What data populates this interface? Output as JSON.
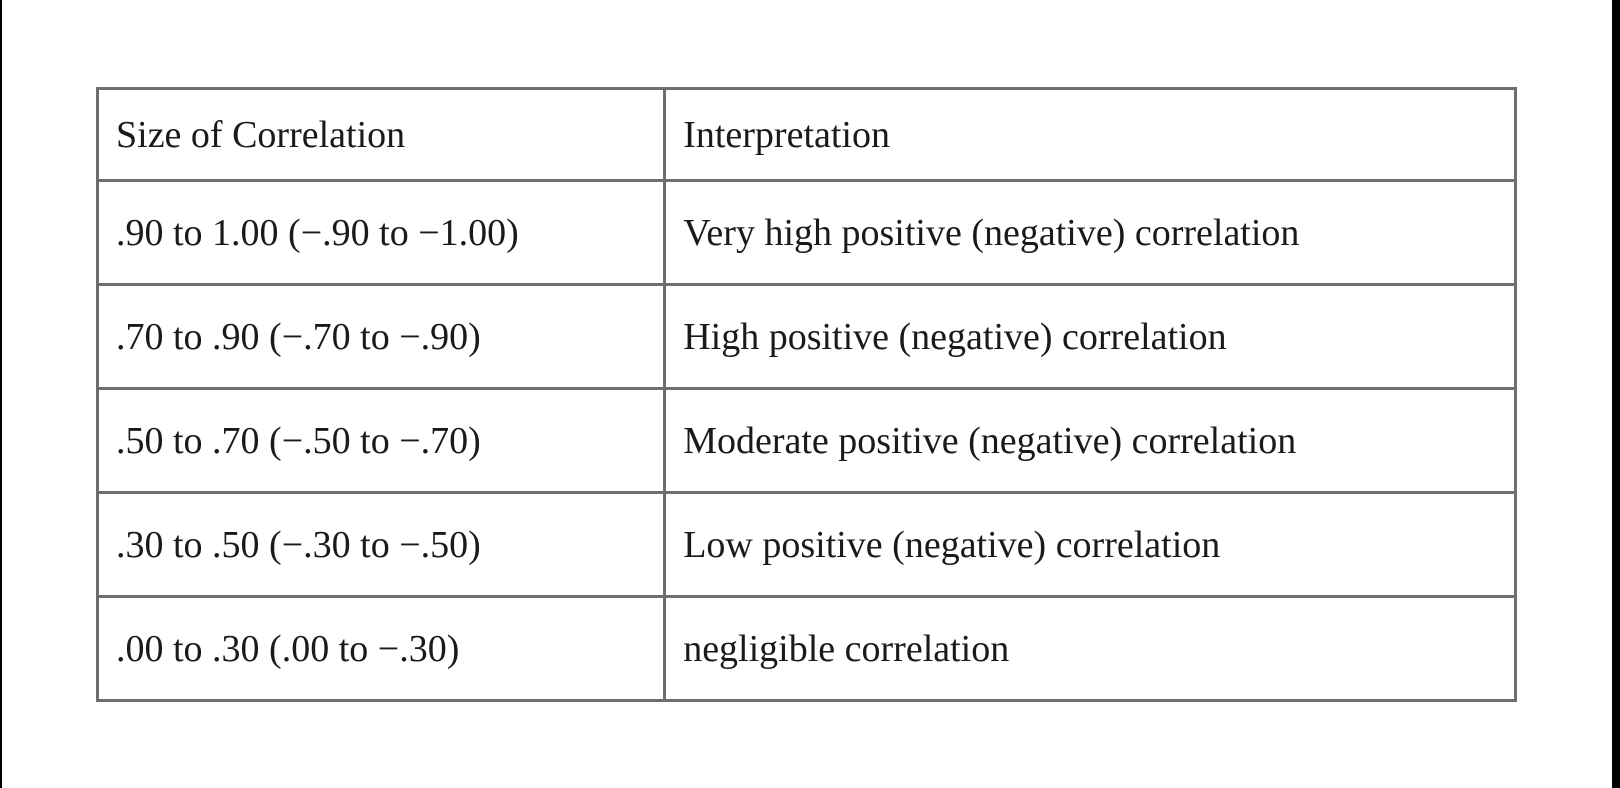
{
  "page": {
    "background": "#ffffff",
    "edge_bar_color": "#000000"
  },
  "table": {
    "columns": [
      {
        "id": "size",
        "label": "Size of Correlation"
      },
      {
        "id": "interpretation",
        "label": "Interpretation"
      }
    ],
    "rows": [
      {
        "size": ".90 to 1.00 (−.90 to −1.00)",
        "interpretation": "Very high positive (negative) correlation"
      },
      {
        "size": ".70 to .90 (−.70 to −.90)",
        "interpretation": "High positive (negative) correlation"
      },
      {
        "size": ".50 to .70 (−.50 to −.70)",
        "interpretation": "Moderate positive (negative) correlation"
      },
      {
        "size": ".30 to .50 (−.30 to −.50)",
        "interpretation": "Low positive (negative) correlation"
      },
      {
        "size": ".00 to .30 (.00 to −.30)",
        "interpretation": "negligible correlation"
      }
    ],
    "style": {
      "inner_border_color": "#6e6e6e",
      "outer_border_color": "#4d4d4d",
      "text_color": "#1a1a1a"
    }
  }
}
